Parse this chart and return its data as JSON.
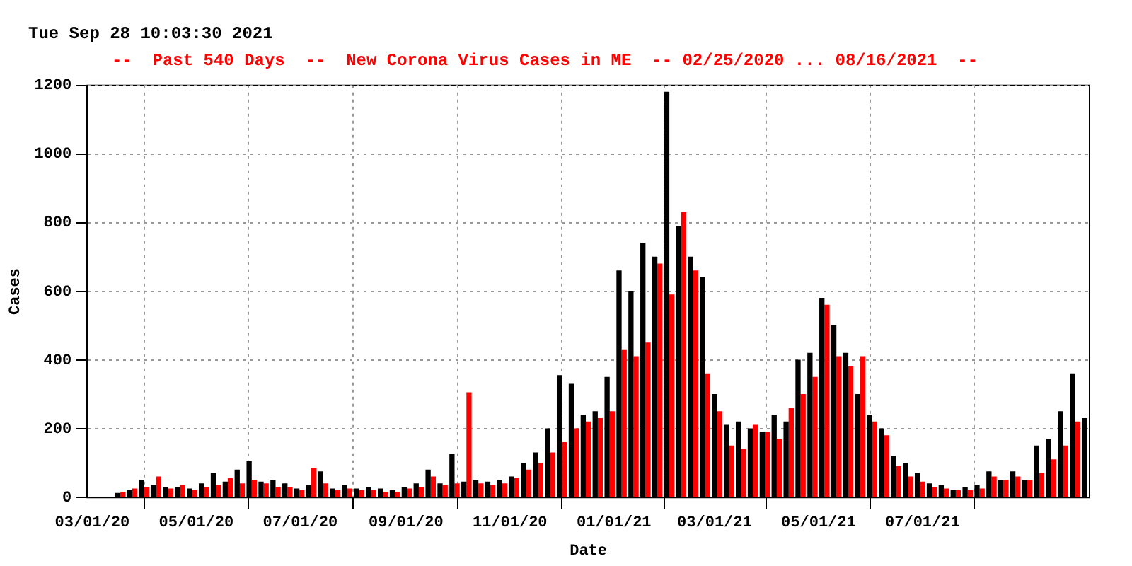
{
  "chart_data": {
    "type": "bar",
    "title": "--  Past 540 Days  --  New Corona Virus Cases in ME  -- 02/25/2020 ... 08/16/2021  --",
    "xlabel": "Date",
    "ylabel": "Cases",
    "annotations": [
      "Tue Sep 28 10:03:30 2021"
    ],
    "xlim": [
      "2020-02-27",
      "2021-10-07"
    ],
    "xticks": [
      {
        "value": "2020-03-01",
        "label": "03/01/20"
      },
      {
        "value": "2020-05-01",
        "label": "05/01/20"
      },
      {
        "value": "2020-07-01",
        "label": "07/01/20"
      },
      {
        "value": "2020-09-01",
        "label": "09/01/20"
      },
      {
        "value": "2020-11-01",
        "label": "11/01/20"
      },
      {
        "value": "2021-01-01",
        "label": "01/01/21"
      },
      {
        "value": "2021-03-01",
        "label": "03/01/21"
      },
      {
        "value": "2021-05-01",
        "label": "05/01/21"
      },
      {
        "value": "2021-07-01",
        "label": "07/01/21"
      }
    ],
    "ylim": [
      0,
      1200
    ],
    "yticks": [
      0,
      200,
      400,
      600,
      800,
      1000,
      1200
    ],
    "grid": true,
    "legend": false,
    "series": [
      {
        "color": "#000000",
        "x": [
          "2020-03-16",
          "2020-03-23",
          "2020-03-30",
          "2020-04-06",
          "2020-04-13",
          "2020-04-20",
          "2020-04-27",
          "2020-05-04",
          "2020-05-11",
          "2020-05-18",
          "2020-05-25",
          "2020-06-01",
          "2020-06-08",
          "2020-06-15",
          "2020-06-22",
          "2020-06-29",
          "2020-07-06",
          "2020-07-13",
          "2020-07-20",
          "2020-07-27",
          "2020-08-03",
          "2020-08-10",
          "2020-08-17",
          "2020-08-24",
          "2020-08-31",
          "2020-09-07",
          "2020-09-14",
          "2020-09-21",
          "2020-09-28",
          "2020-10-05",
          "2020-10-12",
          "2020-10-19",
          "2020-10-26",
          "2020-11-02",
          "2020-11-09",
          "2020-11-16",
          "2020-11-23",
          "2020-11-30",
          "2020-12-07",
          "2020-12-14",
          "2020-12-21",
          "2020-12-28",
          "2021-01-04",
          "2021-01-11",
          "2021-01-18",
          "2021-01-25",
          "2021-02-01",
          "2021-02-08",
          "2021-02-15",
          "2021-02-22",
          "2021-03-01",
          "2021-03-08",
          "2021-03-15",
          "2021-03-22",
          "2021-03-29",
          "2021-04-05",
          "2021-04-12",
          "2021-04-19",
          "2021-04-26",
          "2021-05-03",
          "2021-05-10",
          "2021-05-17",
          "2021-05-24",
          "2021-05-31",
          "2021-06-07",
          "2021-06-14",
          "2021-06-21",
          "2021-06-28",
          "2021-07-05",
          "2021-07-12",
          "2021-07-19",
          "2021-07-26",
          "2021-08-02",
          "2021-08-09",
          "2021-08-16",
          "2021-08-23",
          "2021-08-30",
          "2021-09-06",
          "2021-09-13",
          "2021-09-20",
          "2021-09-27",
          "2021-10-04"
        ],
        "values": [
          12,
          20,
          50,
          35,
          30,
          30,
          25,
          40,
          70,
          45,
          80,
          105,
          45,
          50,
          40,
          25,
          35,
          75,
          25,
          35,
          25,
          30,
          25,
          20,
          30,
          40,
          80,
          40,
          125,
          45,
          50,
          45,
          50,
          60,
          100,
          130,
          200,
          355,
          330,
          240,
          250,
          350,
          660,
          600,
          740,
          700,
          1180,
          790,
          700,
          640,
          300,
          210,
          220,
          200,
          190,
          240,
          220,
          400,
          420,
          580,
          500,
          420,
          300,
          240,
          200,
          120,
          100,
          70,
          40,
          35,
          20,
          30,
          35,
          75,
          50,
          75,
          50,
          150,
          170,
          250,
          360,
          230
        ]
      },
      {
        "color": "#ff0000",
        "x": [
          "2020-03-19",
          "2020-03-26",
          "2020-04-02",
          "2020-04-09",
          "2020-04-16",
          "2020-04-23",
          "2020-04-30",
          "2020-05-07",
          "2020-05-14",
          "2020-05-21",
          "2020-05-28",
          "2020-06-04",
          "2020-06-11",
          "2020-06-18",
          "2020-06-25",
          "2020-07-02",
          "2020-07-09",
          "2020-07-16",
          "2020-07-23",
          "2020-07-30",
          "2020-08-06",
          "2020-08-13",
          "2020-08-20",
          "2020-08-27",
          "2020-09-03",
          "2020-09-10",
          "2020-09-17",
          "2020-09-24",
          "2020-10-01",
          "2020-10-08",
          "2020-10-15",
          "2020-10-22",
          "2020-10-29",
          "2020-11-05",
          "2020-11-12",
          "2020-11-19",
          "2020-11-26",
          "2020-12-03",
          "2020-12-10",
          "2020-12-17",
          "2020-12-24",
          "2020-12-31",
          "2021-01-07",
          "2021-01-14",
          "2021-01-21",
          "2021-01-28",
          "2021-02-04",
          "2021-02-11",
          "2021-02-18",
          "2021-02-25",
          "2021-03-04",
          "2021-03-11",
          "2021-03-18",
          "2021-03-25",
          "2021-04-01",
          "2021-04-08",
          "2021-04-15",
          "2021-04-22",
          "2021-04-29",
          "2021-05-06",
          "2021-05-13",
          "2021-05-20",
          "2021-05-27",
          "2021-06-03",
          "2021-06-10",
          "2021-06-17",
          "2021-06-24",
          "2021-07-01",
          "2021-07-08",
          "2021-07-15",
          "2021-07-22",
          "2021-07-29",
          "2021-08-05",
          "2021-08-12",
          "2021-08-19",
          "2021-08-26",
          "2021-09-02",
          "2021-09-09",
          "2021-09-16",
          "2021-09-23",
          "2021-09-30"
        ],
        "values": [
          15,
          25,
          30,
          60,
          25,
          35,
          20,
          30,
          35,
          55,
          40,
          50,
          40,
          30,
          30,
          20,
          85,
          40,
          20,
          25,
          20,
          20,
          15,
          15,
          25,
          30,
          60,
          35,
          40,
          305,
          40,
          35,
          40,
          55,
          80,
          100,
          130,
          160,
          200,
          220,
          230,
          250,
          430,
          410,
          450,
          680,
          590,
          830,
          660,
          360,
          250,
          150,
          140,
          210,
          190,
          170,
          260,
          300,
          350,
          560,
          410,
          380,
          410,
          220,
          180,
          90,
          60,
          45,
          30,
          25,
          20,
          20,
          25,
          60,
          50,
          60,
          50,
          70,
          110,
          150,
          220
        ]
      }
    ]
  }
}
